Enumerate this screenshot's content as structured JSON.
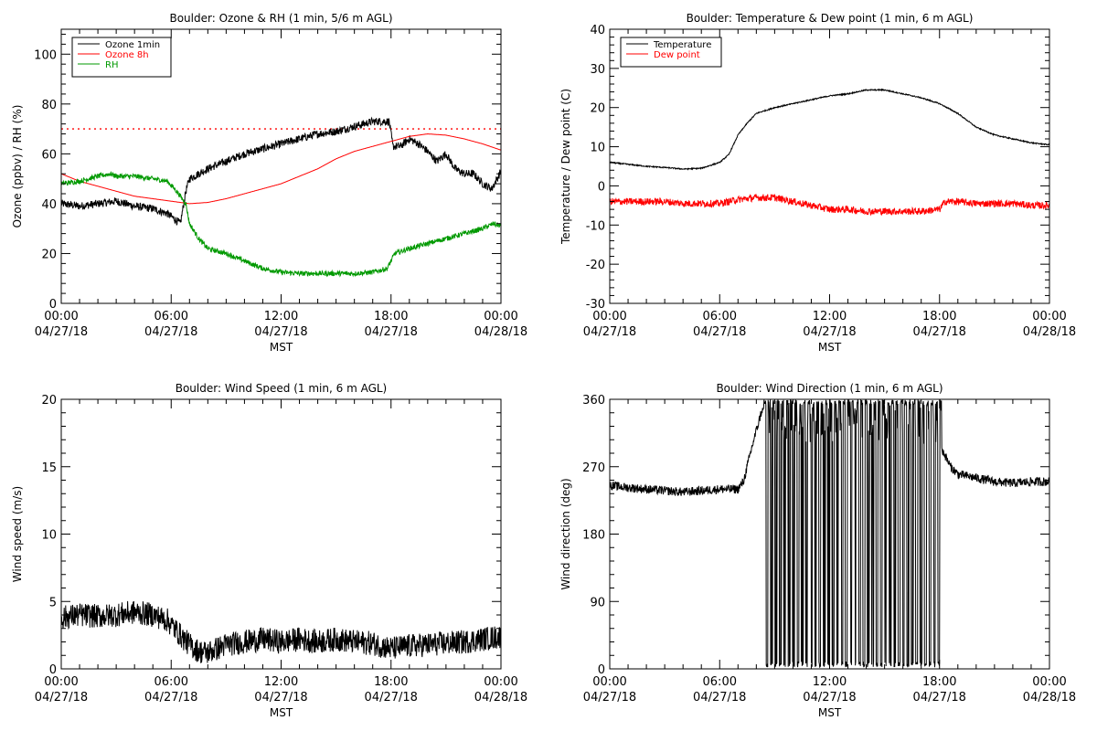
{
  "chart_data": [
    {
      "type": "line",
      "title": "Boulder: Ozone & RH (1 min, 5/6 m AGL)",
      "ylabel": "Ozone (ppbv) / RH (%)",
      "xlabel": "MST",
      "ylim": [
        0,
        110
      ],
      "xlim": [
        0,
        24
      ],
      "yticks": [
        0,
        20,
        40,
        60,
        80,
        100
      ],
      "xticks": [
        {
          "value": 0,
          "label": "00:00",
          "date": "04/27/18"
        },
        {
          "value": 6,
          "label": "06:00",
          "date": "04/27/18"
        },
        {
          "value": 12,
          "label": "12:00",
          "date": "04/27/18"
        },
        {
          "value": 18,
          "label": "18:00",
          "date": "04/27/18"
        },
        {
          "value": 24,
          "label": "00:00",
          "date": "04/28/18"
        }
      ],
      "reference_line": {
        "y": 70,
        "color": "#ff0000",
        "style": "dotted"
      },
      "legend": {
        "position": "top-left"
      },
      "series": [
        {
          "name": "Ozone 1min",
          "color": "#000000",
          "noise": 1.6,
          "x": [
            0,
            1,
            2,
            3,
            4,
            5,
            5.8,
            6.5,
            6.8,
            7,
            8,
            9,
            10,
            11,
            12,
            13,
            14,
            15,
            16,
            17,
            17.9,
            18.1,
            18.5,
            19,
            19.5,
            20,
            20.5,
            21,
            21.5,
            22,
            22.5,
            23,
            23.5,
            24
          ],
          "y": [
            40,
            39,
            40,
            41,
            39,
            38,
            36,
            32,
            45,
            50,
            54,
            57,
            60,
            62,
            64,
            66,
            68,
            69,
            71,
            73,
            73,
            63,
            63,
            66,
            64,
            61,
            57,
            60,
            54,
            52,
            52,
            48,
            46,
            53
          ]
        },
        {
          "name": "Ozone 8h",
          "color": "#ff0000",
          "noise": 0,
          "x": [
            0,
            1,
            2,
            3,
            4,
            5,
            6,
            7,
            8,
            9,
            10,
            11,
            12,
            13,
            14,
            15,
            16,
            17,
            18,
            19,
            20,
            21,
            22,
            23,
            24
          ],
          "y": [
            52,
            49,
            47,
            45,
            43,
            42,
            41,
            40,
            40.5,
            42,
            44,
            46,
            48,
            51,
            54,
            58,
            61,
            63,
            65,
            67,
            68,
            67.5,
            66,
            64,
            61.5
          ]
        },
        {
          "name": "RH",
          "color": "#009900",
          "noise": 1.0,
          "x": [
            0,
            1,
            2,
            2.7,
            3,
            4,
            5,
            5.8,
            6.3,
            6.8,
            7,
            7.5,
            8,
            9,
            10,
            11,
            12,
            13,
            14,
            15,
            16,
            17,
            17.8,
            18.2,
            19,
            20,
            21,
            22,
            23,
            23.6,
            24
          ],
          "y": [
            48,
            49,
            51,
            52,
            51,
            51,
            50,
            49,
            45,
            40,
            32,
            26,
            22,
            20,
            17,
            14,
            12.5,
            12,
            12,
            12,
            12,
            12.5,
            14,
            20,
            22,
            24,
            26,
            28,
            30,
            32,
            31
          ]
        }
      ]
    },
    {
      "type": "line",
      "title": "Boulder: Temperature & Dew point (1 min, 6 m AGL)",
      "ylabel": "Temperature / Dew point (C)",
      "xlabel": "MST",
      "ylim": [
        -30,
        40
      ],
      "xlim": [
        0,
        24
      ],
      "yticks": [
        -30,
        -20,
        -10,
        0,
        10,
        20,
        30,
        40
      ],
      "xticks": [
        {
          "value": 0,
          "label": "00:00",
          "date": "04/27/18"
        },
        {
          "value": 6,
          "label": "06:00",
          "date": "04/27/18"
        },
        {
          "value": 12,
          "label": "12:00",
          "date": "04/27/18"
        },
        {
          "value": 18,
          "label": "18:00",
          "date": "04/27/18"
        },
        {
          "value": 24,
          "label": "00:00",
          "date": "04/28/18"
        }
      ],
      "legend": {
        "position": "top-left"
      },
      "series": [
        {
          "name": "Temperature",
          "color": "#000000",
          "noise": 0.15,
          "x": [
            0,
            1,
            2,
            3,
            4,
            5,
            6,
            6.5,
            7,
            7.5,
            8,
            9,
            10,
            11,
            12,
            13,
            14,
            15,
            16,
            17,
            18,
            19,
            20,
            21,
            22,
            23,
            24
          ],
          "y": [
            6,
            5.5,
            5,
            4.7,
            4.3,
            4.5,
            6,
            8,
            13,
            16,
            18.5,
            20,
            21,
            22,
            23,
            23.5,
            24.5,
            24.5,
            23.5,
            22.5,
            21,
            18.5,
            15,
            13,
            12,
            11,
            10.5
          ]
        },
        {
          "name": "Dew point",
          "color": "#ff0000",
          "noise": 0.9,
          "x": [
            0,
            1,
            2,
            3,
            4,
            5,
            6,
            7,
            8,
            9,
            10,
            11,
            12,
            13,
            14,
            15,
            16,
            17,
            18,
            18.3,
            19,
            20,
            21,
            22,
            23,
            24
          ],
          "y": [
            -4,
            -4,
            -4,
            -4,
            -4.5,
            -4.5,
            -4.5,
            -3.5,
            -3,
            -3,
            -4,
            -5,
            -6,
            -6,
            -6.5,
            -6.5,
            -6.5,
            -6.5,
            -6,
            -4,
            -4,
            -4.5,
            -4.5,
            -4.5,
            -5,
            -5
          ]
        }
      ]
    },
    {
      "type": "line",
      "title": "Boulder: Wind Speed (1 min, 6 m AGL)",
      "ylabel": "Wind speed (m/s)",
      "xlabel": "MST",
      "ylim": [
        0,
        20
      ],
      "xlim": [
        0,
        24
      ],
      "yticks": [
        0,
        5,
        10,
        15,
        20
      ],
      "xticks": [
        {
          "value": 0,
          "label": "00:00",
          "date": "04/27/18"
        },
        {
          "value": 6,
          "label": "06:00",
          "date": "04/27/18"
        },
        {
          "value": 12,
          "label": "12:00",
          "date": "04/27/18"
        },
        {
          "value": 18,
          "label": "18:00",
          "date": "04/27/18"
        },
        {
          "value": 24,
          "label": "00:00",
          "date": "04/28/18"
        }
      ],
      "series": [
        {
          "name": "",
          "color": "#000000",
          "noise": 0.9,
          "x": [
            0,
            1,
            2,
            3,
            4,
            5,
            5.8,
            6.5,
            7,
            7.5,
            8,
            9,
            10,
            11,
            12,
            13,
            14,
            15,
            16,
            17,
            18,
            19,
            20,
            21,
            22,
            23,
            24
          ],
          "y": [
            3.8,
            4,
            3.9,
            4,
            4.2,
            4,
            3.6,
            2.5,
            1.8,
            1.3,
            1.2,
            1.8,
            2,
            2.2,
            2,
            2.2,
            2,
            2.2,
            2,
            1.9,
            1.5,
            1.7,
            1.8,
            1.9,
            2,
            2.2,
            2.4
          ]
        }
      ]
    },
    {
      "type": "line",
      "title": "Boulder: Wind Direction (1 min, 6 m AGL)",
      "ylabel": "Wind direction (deg)",
      "xlabel": "MST",
      "ylim": [
        0,
        360
      ],
      "xlim": [
        0,
        24
      ],
      "yticks": [
        0,
        90,
        180,
        270,
        360
      ],
      "xticks": [
        {
          "value": 0,
          "label": "00:00",
          "date": "04/27/18"
        },
        {
          "value": 6,
          "label": "06:00",
          "date": "04/27/18"
        },
        {
          "value": 12,
          "label": "12:00",
          "date": "04/27/18"
        },
        {
          "value": 18,
          "label": "18:00",
          "date": "04/27/18"
        },
        {
          "value": 24,
          "label": "00:00",
          "date": "04/28/18"
        }
      ],
      "series": [
        {
          "name": "",
          "color": "#000000",
          "noise": 6,
          "wrap": {
            "from": 8.4,
            "to": 18.1
          },
          "x": [
            0,
            1,
            2,
            3,
            4,
            5,
            6,
            7,
            7.3,
            7.8,
            8.3,
            18.2,
            18.6,
            19,
            20,
            21,
            22,
            23,
            24
          ],
          "y": [
            245,
            242,
            240,
            238,
            236,
            238,
            240,
            240,
            250,
            300,
            345,
            290,
            270,
            260,
            255,
            250,
            248,
            250,
            250
          ]
        }
      ]
    }
  ]
}
